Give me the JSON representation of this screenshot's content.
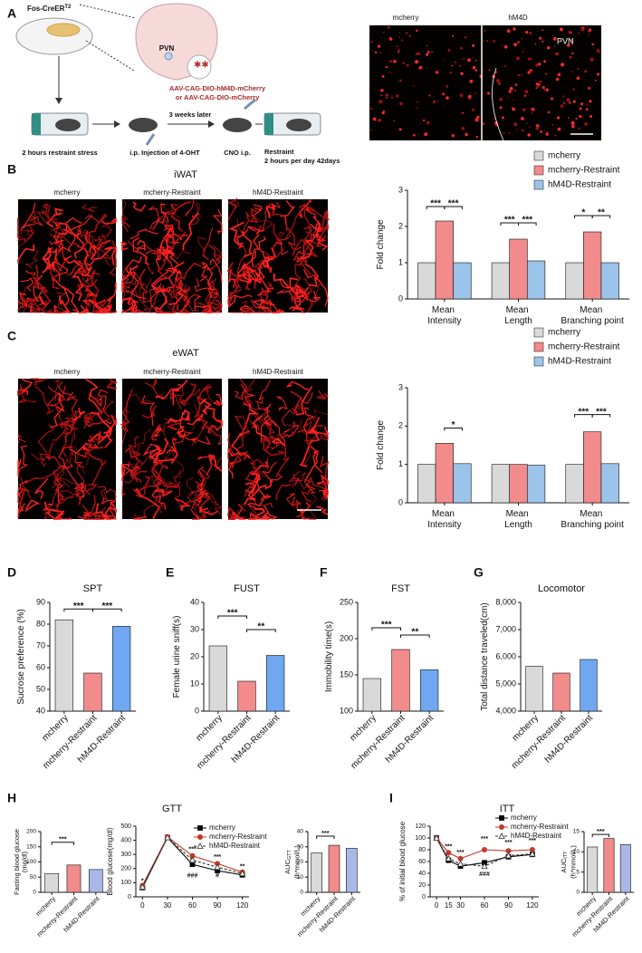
{
  "figure": {
    "panel_labels": [
      "A",
      "B",
      "C",
      "D",
      "E",
      "F",
      "G",
      "H",
      "I"
    ],
    "iwat_title": "iWAT",
    "ewat_title": "eWAT",
    "gtt_title": "GTT",
    "itt_title": "ITT"
  },
  "schematic": {
    "mouse_line": "Fos-CreER",
    "mouse_line_sup": "T2",
    "region": "PVN",
    "virus_1": "AAV-CAG-DIO-hM4D-mCherry",
    "virus_2": "or AAV-CAG-DIO-mCherry",
    "interval": "3 weeks later",
    "step_1": "2 hours restraint stress",
    "step_2": "i.p. Injection of 4-OHT",
    "step_3": "CNO i.p.",
    "step_4": "Restraint",
    "step_4_detail": "2 hours per day 42days"
  },
  "images": {
    "pvn": [
      "mcherry",
      "hM4D",
      "PVN"
    ],
    "iwat": [
      "mcherry",
      "mcherry-Restraint",
      "hM4D-Restraint"
    ],
    "ewat": [
      "mcherry",
      "mcherry-Restraint",
      "hM4D-Restraint"
    ]
  },
  "chart_data": [
    {
      "type": "grouped-bar",
      "ylabel": "Fold change",
      "categories": [
        "Mean Intensity",
        "Mean Length",
        "Mean Branching point"
      ],
      "ylim": [
        0,
        3
      ],
      "yticks": [
        0,
        1,
        2,
        3
      ],
      "series": [
        {
          "name": "mcherry",
          "color": "#d9d9d9",
          "values": [
            1.0,
            1.0,
            1.0
          ]
        },
        {
          "name": "mcherry-Restraint",
          "color": "#f28b8b",
          "values": [
            2.15,
            1.65,
            1.85
          ]
        },
        {
          "name": "hM4D-Restraint",
          "color": "#9cc3ea",
          "values": [
            1.0,
            1.05,
            1.0
          ]
        }
      ],
      "annotations": [
        "***",
        "***",
        "***",
        "***",
        "*",
        "**"
      ]
    },
    {
      "type": "grouped-bar",
      "ylabel": "Fold change",
      "categories": [
        "Mean Intensity",
        "Mean Length",
        "Mean Branching point"
      ],
      "ylim": [
        0,
        3
      ],
      "yticks": [
        0,
        1,
        2,
        3
      ],
      "series": [
        {
          "name": "mcherry",
          "color": "#d9d9d9",
          "values": [
            1.0,
            1.0,
            1.0
          ]
        },
        {
          "name": "mcherry-Restraint",
          "color": "#f28b8b",
          "values": [
            1.55,
            1.0,
            1.85
          ]
        },
        {
          "name": "hM4D-Restraint",
          "color": "#9cc3ea",
          "values": [
            1.02,
            0.98,
            1.02
          ]
        }
      ],
      "annotations": [
        "*",
        "***",
        "***"
      ]
    },
    {
      "type": "bar",
      "title": "SPT",
      "ylabel": "Sucrose preference (%)",
      "categories": [
        "mcherry",
        "mcherry-Restraint",
        "hM4D-Restraint"
      ],
      "values": [
        82,
        57.5,
        79
      ],
      "colors": [
        "#d9d9d9",
        "#f28b8b",
        "#6fa8f0"
      ],
      "ylim": [
        40,
        90
      ],
      "yticks": [
        40,
        50,
        60,
        70,
        80,
        90
      ],
      "annotations": [
        "***",
        "***"
      ]
    },
    {
      "type": "bar",
      "title": "FUST",
      "ylabel": "Female urine sniff(s)",
      "categories": [
        "mcherry",
        "mcherry-Restraint",
        "hM4D-Restraint"
      ],
      "values": [
        24,
        11,
        20.5
      ],
      "colors": [
        "#d9d9d9",
        "#f28b8b",
        "#6fa8f0"
      ],
      "ylim": [
        0,
        40
      ],
      "yticks": [
        0,
        10,
        20,
        30,
        40
      ],
      "annotations": [
        "***",
        "**"
      ]
    },
    {
      "type": "bar",
      "title": "FST",
      "ylabel": "Immobility time(s)",
      "categories": [
        "mcherry",
        "mcherry-Restraint",
        "hM4D-Restraint"
      ],
      "values": [
        145,
        185,
        157
      ],
      "colors": [
        "#d9d9d9",
        "#f28b8b",
        "#6fa8f0"
      ],
      "ylim": [
        100,
        250
      ],
      "yticks": [
        100,
        150,
        200,
        250
      ],
      "annotations": [
        "***",
        "**"
      ]
    },
    {
      "type": "bar",
      "title": "Locomotor",
      "ylabel": "Total distance traveled(cm)",
      "categories": [
        "mcherry",
        "mcherry-Restraint",
        "hM4D-Restraint"
      ],
      "values": [
        5650,
        5400,
        5900
      ],
      "colors": [
        "#d9d9d9",
        "#f28b8b",
        "#6fa8f0"
      ],
      "ylim": [
        4000,
        8000
      ],
      "yticks": [
        {
          "value": 4000,
          "label": "4,000"
        },
        {
          "value": 5000,
          "label": "5,000"
        },
        {
          "value": 6000,
          "label": "6,000"
        },
        {
          "value": 7000,
          "label": "7,000"
        },
        {
          "value": 8000,
          "label": "8,000"
        }
      ],
      "annotations": []
    },
    {
      "type": "bar",
      "ylabel": "Fasting blood glucose",
      "ylabel_unit": "(mg/dl)",
      "categories": [
        "mcherry",
        "mcherry-Restraint",
        "hM4D-Restraint"
      ],
      "values": [
        62,
        90,
        75
      ],
      "colors": [
        "#d9d9d9",
        "#f28b8b",
        "#a9b8e8"
      ],
      "ylim": [
        0,
        200
      ],
      "yticks": [
        0,
        50,
        100,
        150,
        200
      ],
      "annotations": [
        "***"
      ]
    },
    {
      "type": "line",
      "ylabel": "Blood glucose(mg/dl)",
      "x": [
        0,
        30,
        60,
        90,
        120
      ],
      "xlim": [
        -8,
        128
      ],
      "xticks": [
        0,
        30,
        60,
        90,
        120
      ],
      "ylim": [
        0,
        500
      ],
      "yticks": [
        0,
        100,
        200,
        300,
        400,
        500
      ],
      "series": [
        {
          "name": "mcherry",
          "color": "#000000",
          "marker": "square",
          "line_style": "solid",
          "values": [
            65,
            420,
            230,
            185,
            155
          ]
        },
        {
          "name": "mcherry-Restraint",
          "color": "#c0392b",
          "marker": "circle",
          "line_style": "solid",
          "values": [
            80,
            425,
            290,
            235,
            175
          ]
        },
        {
          "name": "hM4D-Restraint",
          "color": "#333333",
          "marker": "triangle",
          "line_style": "dashed",
          "values": [
            70,
            420,
            260,
            210,
            165
          ]
        }
      ],
      "annotations": [
        "*",
        "***",
        "###",
        "***",
        "#",
        "**"
      ]
    },
    {
      "type": "bar",
      "ylabel": "AUC",
      "ylabel_sub": "GTT",
      "ylabel_unit": "(h*mmol/L)",
      "categories": [
        "mcherry",
        "mcherry-Restraint",
        "hM4D-Restraint"
      ],
      "values": [
        26,
        31,
        29
      ],
      "colors": [
        "#d9d9d9",
        "#f28b8b",
        "#a9b8e8"
      ],
      "ylim": [
        0,
        40
      ],
      "yticks": [
        0,
        10,
        20,
        30,
        40
      ],
      "annotations": [
        "***"
      ]
    },
    {
      "type": "line",
      "ylabel": "% of initial blood glucose",
      "x": [
        0,
        15,
        30,
        60,
        90,
        120
      ],
      "xlim": [
        -8,
        128
      ],
      "xticks": [
        0,
        15,
        30,
        60,
        90,
        120
      ],
      "ylim": [
        0,
        120
      ],
      "yticks": [
        0,
        20,
        40,
        60,
        80,
        100,
        120
      ],
      "series": [
        {
          "name": "mcherry",
          "color": "#000000",
          "marker": "square",
          "line_style": "solid",
          "values": [
            100,
            62,
            52,
            58,
            68,
            72
          ]
        },
        {
          "name": "mcherry-Restraint",
          "color": "#c0392b",
          "marker": "circle",
          "line_style": "solid",
          "values": [
            100,
            75,
            65,
            80,
            78,
            80
          ]
        },
        {
          "name": "hM4D-Restraint",
          "color": "#333333",
          "marker": "triangle",
          "line_style": "dashed",
          "values": [
            100,
            65,
            56,
            52,
            70,
            73
          ]
        }
      ],
      "annotations": [
        "***",
        "***",
        "***",
        "###",
        "***",
        "***"
      ]
    },
    {
      "type": "bar",
      "ylabel": "AUC",
      "ylabel_sub": "ITT",
      "ylabel_unit": "(h*mmol/L)",
      "categories": [
        "mcherry",
        "mcherry-Restraint",
        "hM4D-Restraint"
      ],
      "values": [
        11.2,
        13.3,
        11.8
      ],
      "colors": [
        "#d9d9d9",
        "#f28b8b",
        "#a9b8e8"
      ],
      "ylim": [
        0,
        15
      ],
      "yticks": [
        0,
        5,
        10,
        15
      ],
      "annotations": [
        "***"
      ]
    }
  ]
}
